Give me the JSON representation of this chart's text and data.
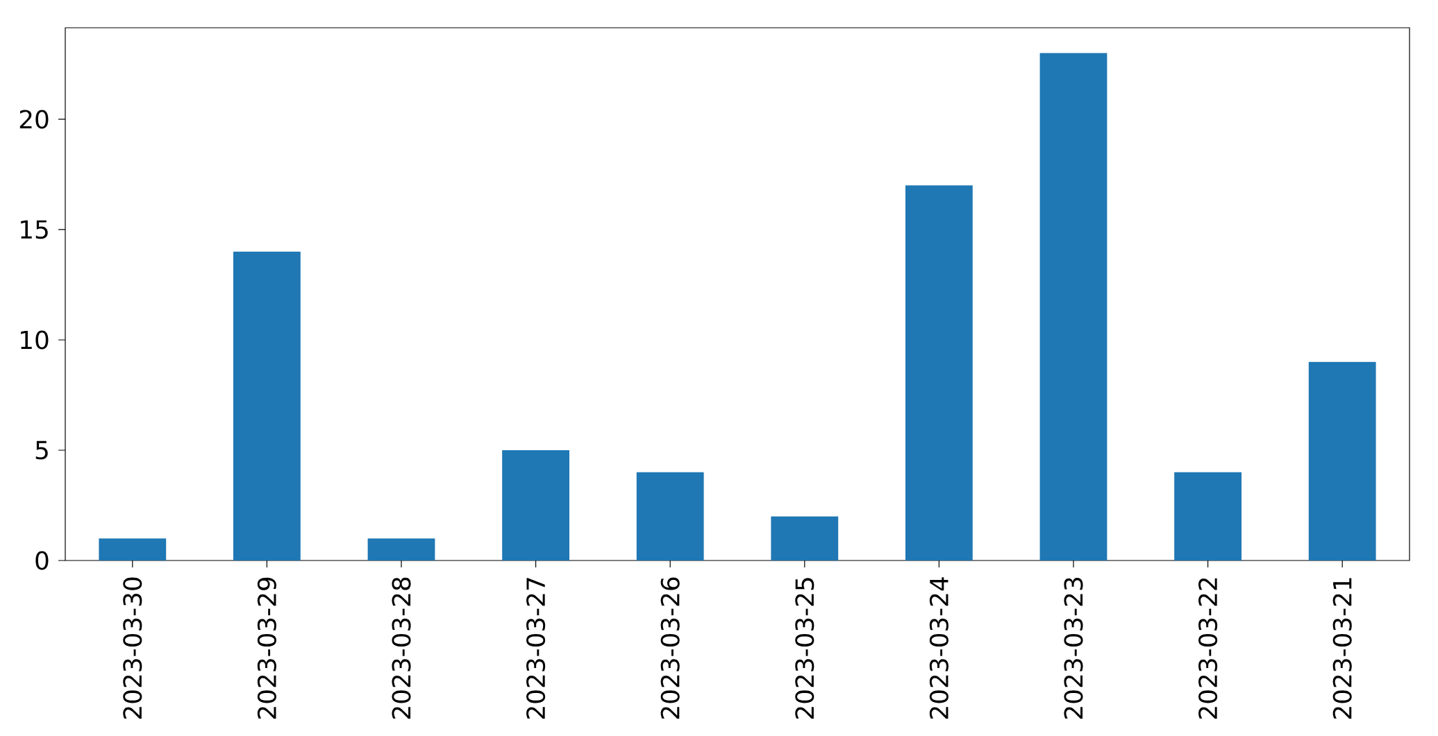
{
  "chart_data": {
    "type": "bar",
    "categories": [
      "2023-03-30",
      "2023-03-29",
      "2023-03-28",
      "2023-03-27",
      "2023-03-26",
      "2023-03-25",
      "2023-03-24",
      "2023-03-23",
      "2023-03-22",
      "2023-03-21"
    ],
    "values": [
      1,
      14,
      1,
      5,
      4,
      2,
      17,
      23,
      4,
      9
    ],
    "color": "#1f77b4",
    "ylim": [
      0,
      24.15
    ],
    "yticks": [
      0,
      5,
      10,
      15,
      20
    ]
  }
}
